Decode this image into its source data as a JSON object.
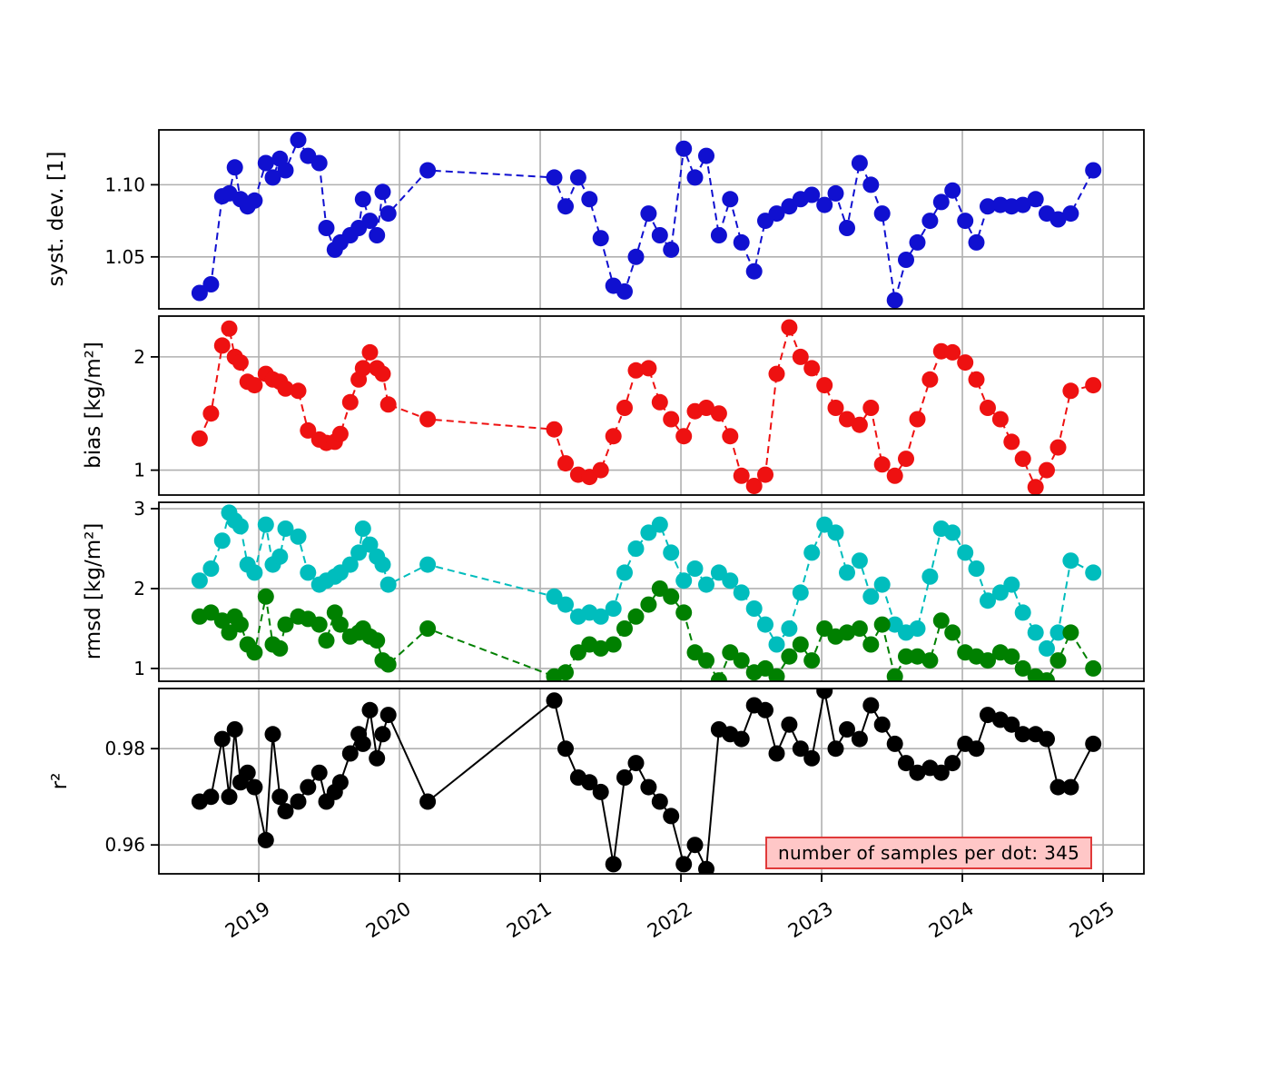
{
  "chart_data": {
    "type": "line",
    "marker": "circle",
    "xlim": [
      2018.29,
      2025.29
    ],
    "x_ticks": [
      2019,
      2020,
      2021,
      2022,
      2023,
      2024,
      2025
    ],
    "x_tick_labels": [
      "2019",
      "2020",
      "2021",
      "2022",
      "2023",
      "2024",
      "2025"
    ],
    "grid": true,
    "grid_color": "#b0b0b0",
    "annotation": {
      "text": "number of samples per dot: 345",
      "bg": "#ffc7c7",
      "border": "#e03a3a"
    },
    "x_years": [
      2018.58,
      2018.66,
      2018.74,
      2018.79,
      2018.83,
      2018.87,
      2018.92,
      2018.97,
      2019.05,
      2019.1,
      2019.15,
      2019.19,
      2019.28,
      2019.35,
      2019.43,
      2019.48,
      2019.54,
      2019.58,
      2019.65,
      2019.71,
      2019.74,
      2019.79,
      2019.84,
      2019.88,
      2019.92,
      2020.2,
      2021.1,
      2021.18,
      2021.27,
      2021.35,
      2021.43,
      2021.52,
      2021.6,
      2021.68,
      2021.77,
      2021.85,
      2021.93,
      2022.02,
      2022.1,
      2022.18,
      2022.27,
      2022.35,
      2022.43,
      2022.52,
      2022.6,
      2022.68,
      2022.77,
      2022.85,
      2022.93,
      2023.02,
      2023.1,
      2023.18,
      2023.27,
      2023.35,
      2023.43,
      2023.52,
      2023.6,
      2023.68,
      2023.77,
      2023.85,
      2023.93,
      2024.02,
      2024.1,
      2024.18,
      2024.27,
      2024.35,
      2024.43,
      2024.52,
      2024.6,
      2024.68,
      2024.77,
      2024.93
    ],
    "panels": [
      {
        "name": "syst-dev",
        "ylabel": "syst. dev. [1]",
        "ylim": [
          1.014,
          1.138
        ],
        "yticks": [
          1.05,
          1.1
        ],
        "ytick_labels": [
          "1.05",
          "1.10"
        ],
        "series": [
          {
            "name": "syst-dev",
            "color": "#1010d0",
            "line": "dashed",
            "values": [
              1.025,
              1.031,
              1.092,
              1.094,
              1.112,
              1.09,
              1.085,
              1.089,
              1.115,
              1.105,
              1.118,
              1.11,
              1.131,
              1.12,
              1.115,
              1.07,
              1.055,
              1.06,
              1.065,
              1.07,
              1.09,
              1.075,
              1.065,
              1.095,
              1.08,
              1.11,
              1.105,
              1.085,
              1.105,
              1.09,
              1.063,
              1.03,
              1.026,
              1.05,
              1.08,
              1.065,
              1.055,
              1.125,
              1.105,
              1.12,
              1.065,
              1.09,
              1.06,
              1.04,
              1.075,
              1.08,
              1.085,
              1.09,
              1.093,
              1.086,
              1.094,
              1.07,
              1.115,
              1.1,
              1.08,
              1.02,
              1.048,
              1.06,
              1.075,
              1.088,
              1.096,
              1.075,
              1.06,
              1.085,
              1.086,
              1.085,
              1.086,
              1.09,
              1.08,
              1.076,
              1.08,
              1.11
            ]
          }
        ]
      },
      {
        "name": "bias",
        "ylabel": "bias [kg/m²]",
        "ylim": [
          0.78,
          2.36
        ],
        "yticks": [
          1,
          2
        ],
        "ytick_labels": [
          "1",
          "2"
        ],
        "series": [
          {
            "name": "bias",
            "color": "#ee1111",
            "line": "dashed",
            "values": [
              1.28,
              1.5,
              2.1,
              2.25,
              2.0,
              1.95,
              1.78,
              1.75,
              1.85,
              1.8,
              1.78,
              1.72,
              1.7,
              1.35,
              1.27,
              1.24,
              1.25,
              1.32,
              1.6,
              1.8,
              1.9,
              2.04,
              1.9,
              1.85,
              1.58,
              1.45,
              1.36,
              1.06,
              0.96,
              0.94,
              1.0,
              1.3,
              1.55,
              1.88,
              1.9,
              1.6,
              1.45,
              1.3,
              1.52,
              1.55,
              1.5,
              1.3,
              0.95,
              0.86,
              0.96,
              1.85,
              2.26,
              2.0,
              1.9,
              1.75,
              1.55,
              1.45,
              1.4,
              1.55,
              1.05,
              0.95,
              1.1,
              1.45,
              1.8,
              2.05,
              2.04,
              1.95,
              1.8,
              1.55,
              1.45,
              1.25,
              1.1,
              0.85,
              1.0,
              1.2,
              1.7,
              1.75
            ]
          }
        ]
      },
      {
        "name": "rmsd",
        "ylabel": "rmsd [kg/m²]",
        "ylim": [
          0.84,
          3.08
        ],
        "yticks": [
          1,
          2,
          3
        ],
        "ytick_labels": [
          "1",
          "2",
          "3"
        ],
        "series": [
          {
            "name": "rmsd-cyan",
            "color": "#00bdbd",
            "line": "dashed",
            "values": [
              2.1,
              2.25,
              2.6,
              2.95,
              2.85,
              2.78,
              2.3,
              2.2,
              2.8,
              2.3,
              2.4,
              2.75,
              2.65,
              2.2,
              2.05,
              2.1,
              2.15,
              2.2,
              2.3,
              2.45,
              2.75,
              2.55,
              2.4,
              2.3,
              2.05,
              2.3,
              1.9,
              1.8,
              1.65,
              1.7,
              1.65,
              1.75,
              2.2,
              2.5,
              2.7,
              2.8,
              2.45,
              2.1,
              2.25,
              2.05,
              2.2,
              2.1,
              1.95,
              1.75,
              1.55,
              1.3,
              1.5,
              1.95,
              2.45,
              2.8,
              2.7,
              2.2,
              2.35,
              1.9,
              2.05,
              1.55,
              1.45,
              1.5,
              2.15,
              2.75,
              2.7,
              2.45,
              2.25,
              1.85,
              1.95,
              2.05,
              1.7,
              1.45,
              1.25,
              1.45,
              2.35,
              2.2
            ]
          },
          {
            "name": "rmsd-green",
            "color": "#008000",
            "line": "dashed",
            "values": [
              1.65,
              1.7,
              1.6,
              1.45,
              1.65,
              1.55,
              1.3,
              1.2,
              1.9,
              1.3,
              1.25,
              1.55,
              1.65,
              1.62,
              1.55,
              1.35,
              1.7,
              1.55,
              1.4,
              1.45,
              1.5,
              1.4,
              1.35,
              1.1,
              1.05,
              1.5,
              0.9,
              0.95,
              1.2,
              1.3,
              1.25,
              1.3,
              1.5,
              1.65,
              1.8,
              2.0,
              1.9,
              1.7,
              1.2,
              1.1,
              0.85,
              1.2,
              1.1,
              0.95,
              1.0,
              0.9,
              1.15,
              1.3,
              1.1,
              1.5,
              1.4,
              1.45,
              1.5,
              1.3,
              1.55,
              0.9,
              1.15,
              1.15,
              1.1,
              1.6,
              1.45,
              1.2,
              1.15,
              1.1,
              1.2,
              1.15,
              1.0,
              0.9,
              0.85,
              1.1,
              1.45,
              1.0
            ]
          }
        ]
      },
      {
        "name": "r2",
        "ylabel": "r²",
        "ylim": [
          0.954,
          0.9925
        ],
        "yticks": [
          0.96,
          0.98
        ],
        "ytick_labels": [
          "0.96",
          "0.98"
        ],
        "series": [
          {
            "name": "r2",
            "color": "#000000",
            "line": "solid",
            "values": [
              0.969,
              0.97,
              0.982,
              0.97,
              0.984,
              0.973,
              0.975,
              0.972,
              0.961,
              0.983,
              0.97,
              0.967,
              0.969,
              0.972,
              0.975,
              0.969,
              0.971,
              0.973,
              0.979,
              0.983,
              0.981,
              0.988,
              0.978,
              0.983,
              0.987,
              0.969,
              0.99,
              0.98,
              0.974,
              0.973,
              0.971,
              0.956,
              0.974,
              0.977,
              0.972,
              0.969,
              0.966,
              0.956,
              0.96,
              0.955,
              0.984,
              0.983,
              0.982,
              0.989,
              0.988,
              0.979,
              0.985,
              0.98,
              0.978,
              0.992,
              0.98,
              0.984,
              0.982,
              0.989,
              0.985,
              0.981,
              0.977,
              0.975,
              0.976,
              0.975,
              0.977,
              0.981,
              0.98,
              0.987,
              0.986,
              0.985,
              0.983,
              0.983,
              0.982,
              0.972,
              0.972,
              0.981
            ]
          }
        ]
      }
    ]
  }
}
